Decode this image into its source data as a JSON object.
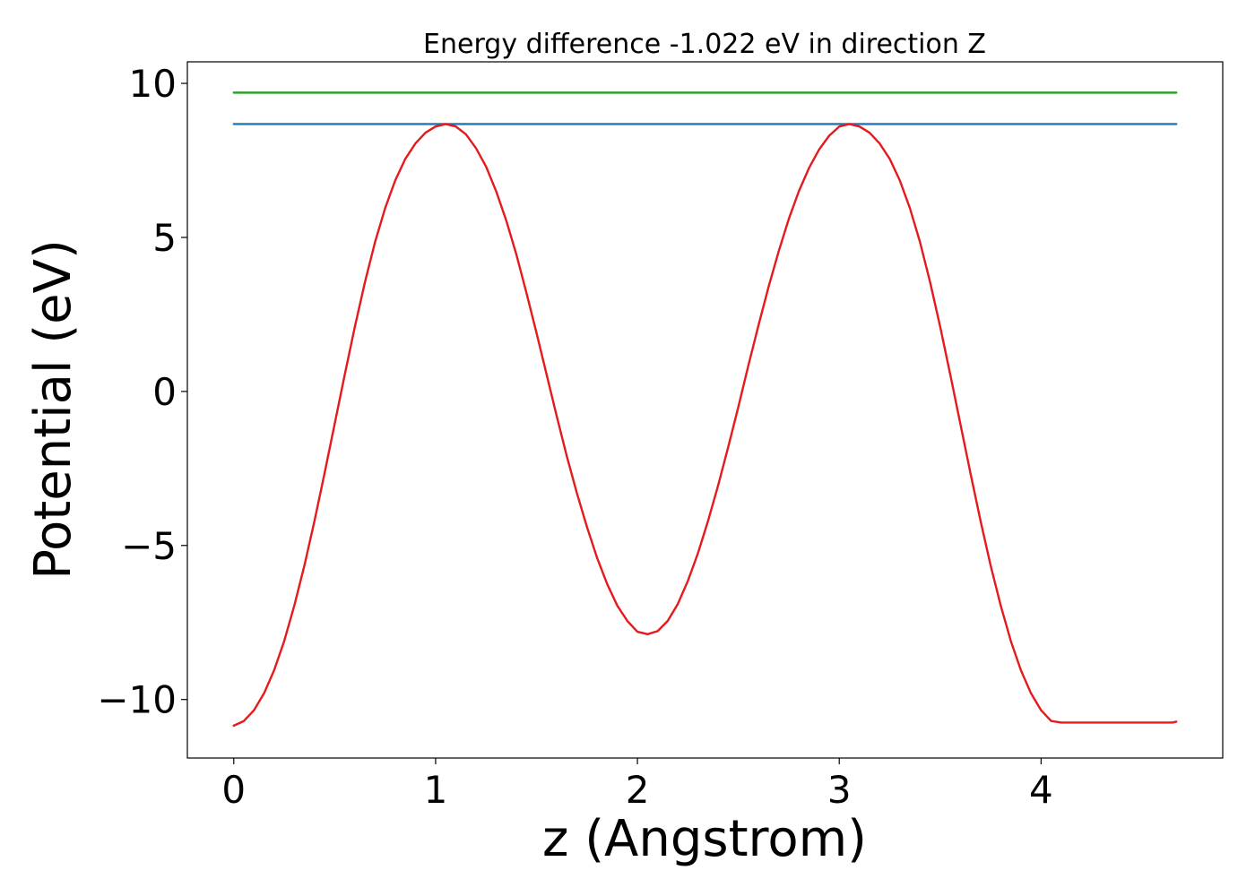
{
  "chart_data": {
    "type": "line",
    "title": "Energy difference -1.022 eV in direction Z",
    "xlabel": "z (Angstrom)",
    "ylabel": "Potential (eV)",
    "xlim": [
      -0.23,
      4.9
    ],
    "ylim": [
      -11.9,
      10.7
    ],
    "x_ticks": [
      {
        "value": 0,
        "label": "0"
      },
      {
        "value": 1,
        "label": "1"
      },
      {
        "value": 2,
        "label": "2"
      },
      {
        "value": 3,
        "label": "3"
      },
      {
        "value": 4,
        "label": "4"
      }
    ],
    "y_ticks": [
      {
        "value": 10,
        "label": "10"
      },
      {
        "value": 5,
        "label": "5"
      },
      {
        "value": 0,
        "label": "0"
      },
      {
        "value": -5,
        "label": "−5"
      },
      {
        "value": -10,
        "label": "−10"
      }
    ],
    "grid": false,
    "series": [
      {
        "color": "#2ca02c",
        "x": [
          0,
          4.67
        ],
        "y": [
          9.7,
          9.7
        ]
      },
      {
        "color": "#1f77b4",
        "x": [
          0,
          4.67
        ],
        "y": [
          8.68,
          8.68
        ]
      },
      {
        "color": "#e41a1c",
        "x": [
          0.0,
          0.05,
          0.1,
          0.15,
          0.2,
          0.25,
          0.3,
          0.35,
          0.4,
          0.45,
          0.5,
          0.55,
          0.6,
          0.65,
          0.7,
          0.75,
          0.8,
          0.85,
          0.9,
          0.95,
          1.0,
          1.05,
          1.1,
          1.15,
          1.2,
          1.25,
          1.3,
          1.35,
          1.4,
          1.45,
          1.5,
          1.55,
          1.6,
          1.65,
          1.7,
          1.75,
          1.8,
          1.85,
          1.9,
          1.95,
          2.0,
          2.05,
          2.1,
          2.15,
          2.2,
          2.25,
          2.3,
          2.35,
          2.4,
          2.45,
          2.5,
          2.55,
          2.6,
          2.65,
          2.7,
          2.75,
          2.8,
          2.85,
          2.9,
          2.95,
          3.0,
          3.05,
          3.1,
          3.15,
          3.2,
          3.25,
          3.3,
          3.35,
          3.4,
          3.45,
          3.5,
          3.55,
          3.6,
          3.65,
          3.7,
          3.75,
          3.8,
          3.85,
          3.9,
          3.95,
          4.0,
          4.05,
          4.1,
          4.15,
          4.2,
          4.25,
          4.3,
          4.35,
          4.4,
          4.45,
          4.5,
          4.55,
          4.6,
          4.65,
          4.67
        ],
        "y": [
          -10.85,
          -10.7,
          -10.35,
          -9.8,
          -9.05,
          -8.1,
          -6.95,
          -5.65,
          -4.2,
          -2.65,
          -1.05,
          0.55,
          2.1,
          3.55,
          4.85,
          5.95,
          6.85,
          7.55,
          8.05,
          8.4,
          8.6,
          8.68,
          8.6,
          8.35,
          7.9,
          7.3,
          6.5,
          5.55,
          4.45,
          3.2,
          1.9,
          0.55,
          -0.8,
          -2.1,
          -3.3,
          -4.4,
          -5.4,
          -6.25,
          -6.95,
          -7.45,
          -7.8,
          -7.88,
          -7.78,
          -7.45,
          -6.9,
          -6.15,
          -5.25,
          -4.2,
          -3.05,
          -1.8,
          -0.5,
          0.85,
          2.15,
          3.4,
          4.55,
          5.6,
          6.5,
          7.25,
          7.85,
          8.3,
          8.6,
          8.68,
          8.6,
          8.4,
          8.05,
          7.55,
          6.85,
          5.95,
          4.85,
          3.55,
          2.1,
          0.55,
          -1.05,
          -2.65,
          -4.2,
          -5.65,
          -6.95,
          -8.1,
          -9.05,
          -9.8,
          -10.35,
          -10.7,
          -10.75,
          -10.75,
          -10.75,
          -10.75,
          -10.75,
          -10.75,
          -10.75,
          -10.75,
          -10.75,
          -10.75,
          -10.75,
          -10.75,
          -10.72
        ]
      }
    ]
  }
}
